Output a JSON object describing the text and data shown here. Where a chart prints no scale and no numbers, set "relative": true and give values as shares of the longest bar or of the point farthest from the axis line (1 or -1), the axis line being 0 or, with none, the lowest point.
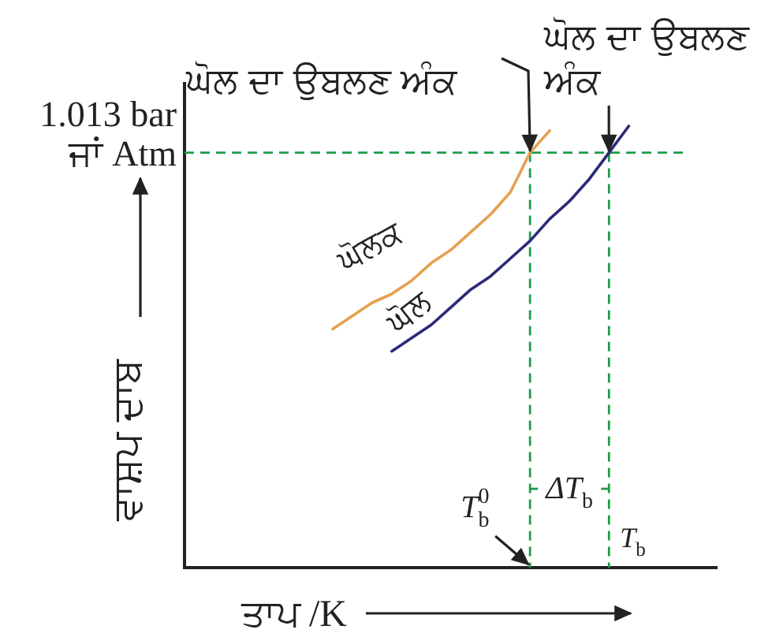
{
  "chart_data": {
    "type": "line",
    "relative": true,
    "line_style": "solid",
    "categories": [
      null,
      null,
      null,
      null,
      null,
      null,
      null,
      null,
      null,
      null,
      null,
      null,
      null,
      null,
      null,
      null,
      null,
      null,
      null,
      null,
      null,
      null,
      null,
      null,
      null,
      null,
      null
    ],
    "series": [
      {
        "name": "ਘੋਲਕ",
        "color": "#e6a050",
        "values": [
          null,
          null,
          null,
          null,
          null,
          null,
          null,
          0.54,
          0.57,
          0.6,
          0.62,
          0.65,
          0.69,
          0.72,
          0.76,
          0.8,
          0.85,
          0.94,
          0.99,
          null,
          null,
          null,
          null,
          null,
          null,
          null,
          null
        ]
      },
      {
        "name": "ਘੋਲ",
        "color": "#2b2a7a",
        "values": [
          null,
          null,
          null,
          null,
          null,
          null,
          null,
          null,
          null,
          null,
          0.49,
          0.52,
          0.55,
          0.59,
          0.63,
          0.66,
          0.7,
          0.74,
          0.79,
          0.83,
          0.88,
          0.94,
          1,
          null,
          null,
          null,
          null
        ]
      }
    ],
    "ylabel": "ਵਾਸ਼ਪ ਦਾਬ",
    "xlabel": "ਤਾਪ /K",
    "ref_lines": [
      {
        "axis": "y",
        "value": 0.94,
        "label": "1.013 bar\nਜਾਂ Atm",
        "color": "#1f9c48",
        "line_style": "dashed"
      }
    ],
    "annotations": [
      "ਘੋਲ ਦਾ ਉਬਲਣ ਅੰਕ",
      "ਘੋਲ ਦਾ ਉਬਲਣ\nਅੰਕ",
      "ΔT$_{b}$",
      "T$_{b}$$^{0}$",
      "T$_{b}$"
    ]
  }
}
